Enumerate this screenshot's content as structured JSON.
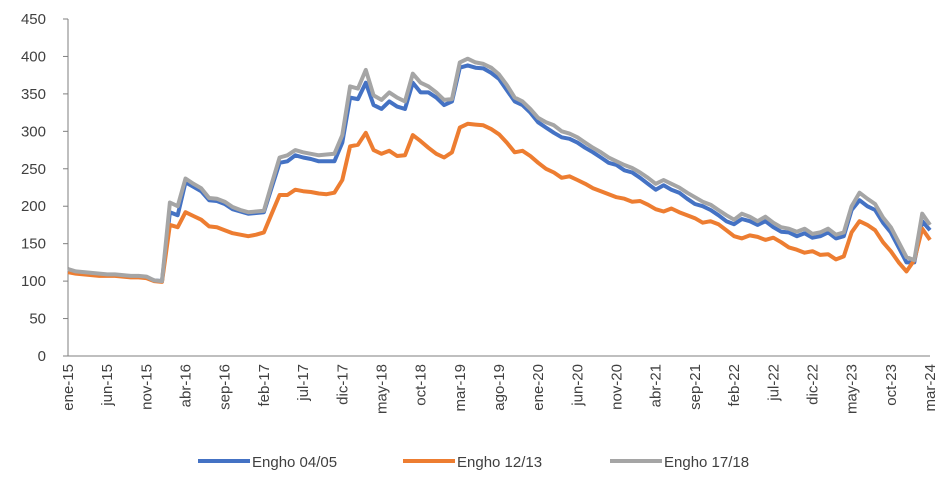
{
  "chart_data": {
    "type": "line",
    "categories": [
      "ene-15",
      null,
      null,
      null,
      null,
      "jun-15",
      null,
      null,
      null,
      null,
      "nov-15",
      null,
      null,
      null,
      null,
      "abr-16",
      null,
      null,
      null,
      null,
      "sep-16",
      null,
      null,
      null,
      null,
      "feb-17",
      null,
      null,
      null,
      null,
      "jul-17",
      null,
      null,
      null,
      null,
      "dic-17",
      null,
      null,
      null,
      null,
      "may-18",
      null,
      null,
      null,
      null,
      "oct-18",
      null,
      null,
      null,
      null,
      "mar-19",
      null,
      null,
      null,
      null,
      "ago-19",
      null,
      null,
      null,
      null,
      "ene-20",
      null,
      null,
      null,
      null,
      "jun-20",
      null,
      null,
      null,
      null,
      "nov-20",
      null,
      null,
      null,
      null,
      "abr-21",
      null,
      null,
      null,
      null,
      "sep-21",
      null,
      null,
      null,
      null,
      "feb-22",
      null,
      null,
      null,
      null,
      "jul-22",
      null,
      null,
      null,
      null,
      "dic-22",
      null,
      null,
      null,
      null,
      "may-23",
      null,
      null,
      null,
      null,
      "oct-23",
      null,
      null,
      null,
      null,
      "mar-24"
    ],
    "series": [
      {
        "name": "Engho 04/05",
        "color": "#4472c4",
        "values": [
          114,
          112,
          111,
          110,
          109,
          108,
          108,
          107,
          106,
          106,
          105,
          101,
          100,
          192,
          188,
          232,
          226,
          220,
          208,
          207,
          203,
          196,
          193,
          190,
          191,
          192,
          225,
          258,
          260,
          268,
          265,
          263,
          260,
          260,
          260,
          285,
          345,
          343,
          365,
          335,
          330,
          340,
          333,
          330,
          365,
          352,
          352,
          345,
          335,
          340,
          385,
          388,
          385,
          384,
          378,
          370,
          355,
          340,
          335,
          325,
          312,
          305,
          298,
          292,
          290,
          285,
          278,
          272,
          265,
          258,
          255,
          248,
          245,
          238,
          230,
          222,
          228,
          222,
          218,
          210,
          203,
          200,
          195,
          188,
          180,
          176,
          183,
          180,
          175,
          180,
          172,
          166,
          165,
          160,
          164,
          158,
          160,
          165,
          157,
          160,
          195,
          208,
          200,
          195,
          178,
          165,
          145,
          125,
          125,
          180,
          168
        ]
      },
      {
        "name": "Engho 12/13",
        "color": "#ed7d31",
        "values": [
          112,
          110,
          109,
          108,
          107,
          107,
          107,
          106,
          105,
          105,
          104,
          100,
          99,
          175,
          172,
          192,
          187,
          182,
          173,
          172,
          168,
          164,
          162,
          160,
          162,
          165,
          190,
          215,
          215,
          222,
          220,
          219,
          217,
          216,
          218,
          235,
          280,
          282,
          298,
          275,
          270,
          274,
          267,
          268,
          295,
          287,
          278,
          270,
          265,
          272,
          305,
          310,
          309,
          308,
          303,
          296,
          285,
          272,
          274,
          267,
          258,
          250,
          245,
          238,
          240,
          235,
          230,
          224,
          220,
          216,
          212,
          210,
          206,
          207,
          202,
          196,
          193,
          197,
          192,
          188,
          184,
          178,
          180,
          176,
          168,
          160,
          157,
          161,
          159,
          155,
          158,
          152,
          145,
          142,
          138,
          140,
          135,
          136,
          129,
          133,
          165,
          180,
          175,
          168,
          152,
          140,
          125,
          113,
          128,
          170,
          155
        ]
      },
      {
        "name": "Engho 17/18",
        "color": "#a5a5a5",
        "values": [
          116,
          113,
          112,
          111,
          110,
          109,
          109,
          108,
          107,
          107,
          106,
          101,
          100,
          205,
          200,
          237,
          230,
          224,
          211,
          210,
          206,
          199,
          195,
          192,
          193,
          194,
          230,
          265,
          268,
          275,
          272,
          270,
          268,
          269,
          270,
          295,
          360,
          357,
          382,
          348,
          342,
          352,
          345,
          340,
          377,
          365,
          360,
          352,
          342,
          343,
          392,
          397,
          392,
          390,
          385,
          376,
          362,
          345,
          340,
          330,
          318,
          312,
          308,
          300,
          297,
          292,
          285,
          278,
          272,
          265,
          260,
          255,
          251,
          245,
          238,
          230,
          235,
          230,
          225,
          218,
          212,
          206,
          202,
          195,
          188,
          182,
          190,
          186,
          180,
          186,
          178,
          172,
          170,
          166,
          170,
          163,
          165,
          170,
          162,
          165,
          200,
          218,
          210,
          203,
          185,
          172,
          152,
          132,
          128,
          190,
          175
        ]
      }
    ],
    "ylim": [
      0,
      450
    ],
    "yticks": [
      0,
      50,
      100,
      150,
      200,
      250,
      300,
      350,
      400,
      450
    ],
    "legend": "bottom"
  }
}
